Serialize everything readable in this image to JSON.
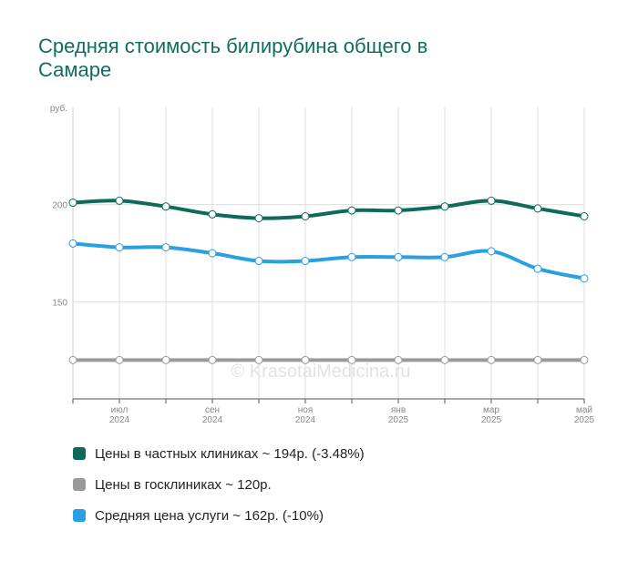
{
  "chart_data": {
    "type": "line",
    "title": [
      "Средняя стоимость билирубина общего в",
      "Самаре"
    ],
    "y_label": "руб.",
    "watermark": "© KrasotaiMedicina.ru",
    "categories": [
      null,
      [
        "июл",
        "2024"
      ],
      null,
      [
        "сен",
        "2024"
      ],
      null,
      [
        "ноя",
        "2024"
      ],
      null,
      [
        "янв",
        "2025"
      ],
      null,
      [
        "мар",
        "2025"
      ],
      null,
      [
        "май",
        "2025"
      ]
    ],
    "series": [
      {
        "name": "Цены в частных клиниках ~ 194р. (-3.48%)",
        "color": "#0e6b5c",
        "values": [
          201,
          202,
          199,
          195,
          193,
          194,
          197,
          197,
          199,
          202,
          198,
          194
        ]
      },
      {
        "name": "Цены в госклиниках ~ 120р.",
        "color": "#9a9a9a",
        "values": [
          120,
          120,
          120,
          120,
          120,
          120,
          120,
          120,
          120,
          120,
          120,
          120
        ]
      },
      {
        "name": "Средняя цена услуги ~ 162р. (-10%)",
        "color": "#29a0e0",
        "values": [
          180,
          178,
          178,
          175,
          171,
          171,
          173,
          173,
          173,
          176,
          167,
          162
        ]
      }
    ],
    "ylim": [
      100,
      250
    ],
    "yticks": [
      150,
      200
    ],
    "grid": true
  }
}
